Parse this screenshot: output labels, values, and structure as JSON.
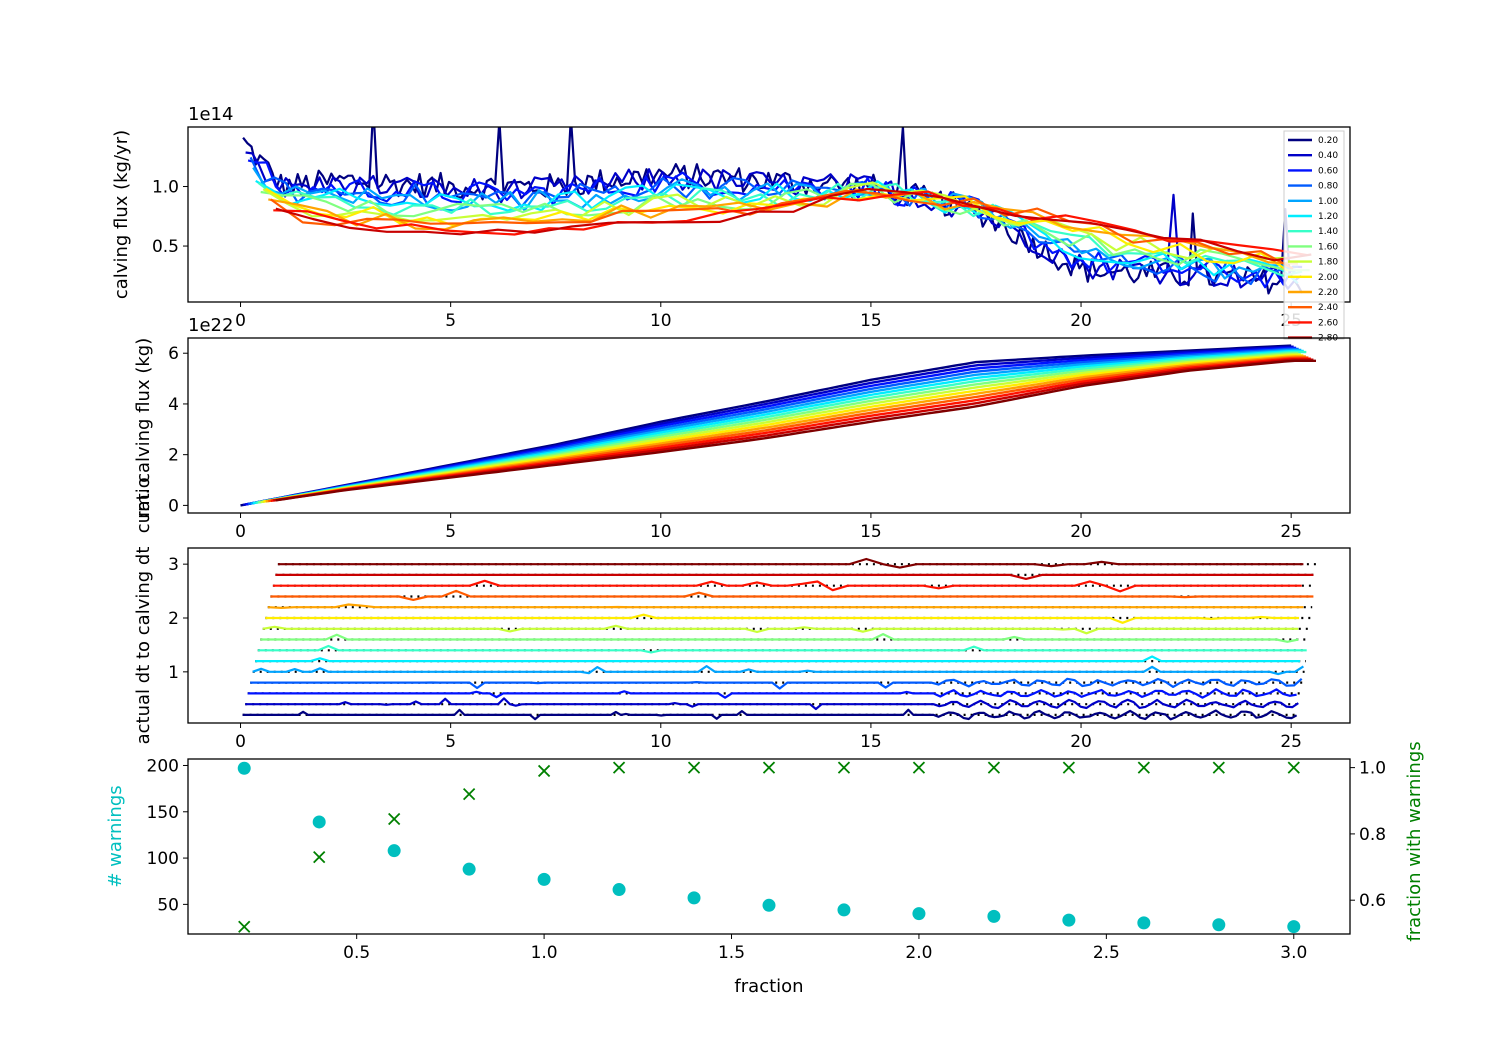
{
  "chart_data": [
    {
      "type": "line",
      "title": "",
      "ylabel": "calving flux (kg/yr)",
      "offset_text": "1e14",
      "scale": 100000000000000.0,
      "xlim": [
        -1.25,
        26.4
      ],
      "ylim": [
        0.03,
        1.5
      ],
      "xticks": [
        0,
        5,
        10,
        15,
        20,
        25
      ],
      "yticks": [
        0.5,
        1.0
      ],
      "legend": {
        "position": "right",
        "entries": [
          "0.20",
          "0.40",
          "0.60",
          "0.80",
          "1.00",
          "1.20",
          "1.40",
          "1.60",
          "1.80",
          "2.00",
          "2.20",
          "2.40",
          "2.60",
          "2.80"
        ]
      },
      "series_note": "14 noisy series, one per fraction 0.20-3.00; keypoints (years, 1e14 kg/yr)",
      "keypoints": {
        "x": [
          0,
          1,
          2.5,
          5,
          7.5,
          10,
          12.5,
          15,
          17.5,
          20,
          22.5,
          25
        ],
        "low_fraction": [
          1.4,
          1.0,
          1.05,
          1.0,
          1.0,
          1.1,
          1.05,
          1.0,
          0.8,
          0.3,
          0.25,
          0.2
        ],
        "high_fraction": [
          1.0,
          0.75,
          0.65,
          0.6,
          0.65,
          0.7,
          0.75,
          0.95,
          0.85,
          0.75,
          0.55,
          0.4
        ]
      }
    },
    {
      "type": "line",
      "ylabel": "cum. calving flux (kg)",
      "offset_text": "1e22",
      "xlim": [
        -1.25,
        26.4
      ],
      "ylim": [
        -0.3,
        6.6
      ],
      "xticks": [
        0,
        5,
        10,
        15,
        20,
        25
      ],
      "yticks": [
        0,
        2,
        4,
        6
      ],
      "series_note": "cumulative curves, fraction 0.20 (top) to 3.00 (bottom)",
      "x": [
        0,
        2.5,
        5,
        7.5,
        10,
        12.5,
        15,
        17.5,
        20,
        22.5,
        25
      ],
      "low_fraction": [
        0,
        0.8,
        1.6,
        2.4,
        3.3,
        4.1,
        4.95,
        5.65,
        5.9,
        6.1,
        6.3
      ],
      "high_fraction": [
        0,
        0.6,
        1.1,
        1.6,
        2.1,
        2.65,
        3.3,
        3.9,
        4.7,
        5.3,
        5.7
      ]
    },
    {
      "type": "line",
      "ylabel": "ratio\nactual dt to calving dt",
      "xlim": [
        -1.25,
        26.4
      ],
      "ylim": [
        0.05,
        3.3
      ],
      "xticks": [
        0,
        5,
        10,
        15,
        20,
        25
      ],
      "yticks": [
        1,
        2,
        3
      ],
      "series_note": "each series hovers around its own fraction value, dotted reference lines at each fraction"
    },
    {
      "type": "scatter",
      "xlabel": "fraction",
      "ylabel": "# warnings",
      "ylabel_right": "fraction with warnings",
      "xlim": [
        0.05,
        3.15
      ],
      "ylim": [
        18,
        207
      ],
      "ylim_right": [
        0.498,
        1.026
      ],
      "xticks": [
        0.5,
        1.0,
        1.5,
        2.0,
        2.5,
        3.0
      ],
      "yticks": [
        50,
        100,
        150,
        200
      ],
      "yticks_right": [
        0.6,
        0.8,
        1.0
      ],
      "x": [
        0.2,
        0.4,
        0.6,
        0.8,
        1.0,
        1.2,
        1.4,
        1.6,
        1.8,
        2.0,
        2.2,
        2.4,
        2.6,
        2.8,
        3.0
      ],
      "series": [
        {
          "name": "# warnings",
          "marker": "circle",
          "color": "#00bfbf",
          "axis": "left",
          "values": [
            197,
            139,
            108,
            88,
            77,
            66,
            57,
            49,
            44,
            40,
            37,
            33,
            30,
            28,
            26
          ]
        },
        {
          "name": "fraction with warnings",
          "marker": "x",
          "color": "#008000",
          "axis": "right",
          "values": [
            0.52,
            0.73,
            0.845,
            0.92,
            0.99,
            1.0,
            1.0,
            1.0,
            1.0,
            1.0,
            1.0,
            1.0,
            1.0,
            1.0,
            1.0
          ]
        }
      ]
    }
  ]
}
